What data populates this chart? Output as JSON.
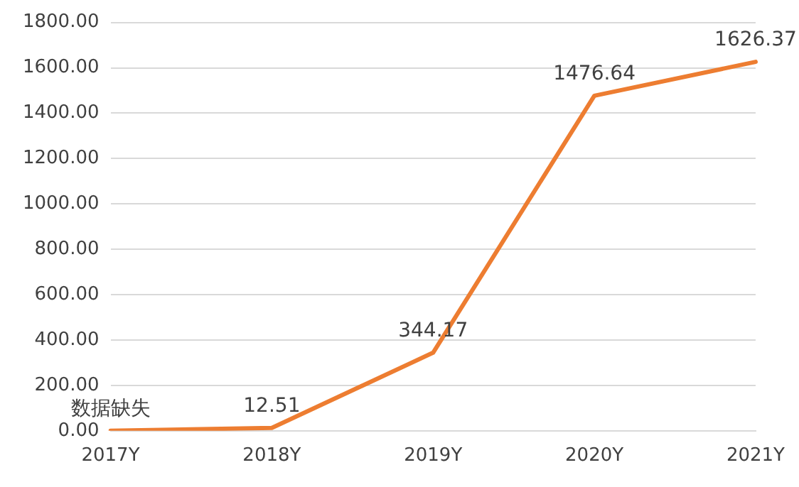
{
  "chart_data": {
    "type": "line",
    "categories": [
      "2017Y",
      "2018Y",
      "2019Y",
      "2020Y",
      "2021Y"
    ],
    "series": [
      {
        "color": "#ed7d31",
        "values": [
          0,
          12.51,
          344.17,
          1476.64,
          1626.37
        ],
        "value_labels": [
          "数据缺失",
          "12.51",
          "344.17",
          "1476.64",
          "1626.37"
        ]
      }
    ],
    "ylim": [
      0,
      1800
    ],
    "yticks": [
      {
        "value": 0,
        "label": "0.00"
      },
      {
        "value": 200,
        "label": "200.00"
      },
      {
        "value": 400,
        "label": "400.00"
      },
      {
        "value": 600,
        "label": "600.00"
      },
      {
        "value": 800,
        "label": "800.00"
      },
      {
        "value": 1000,
        "label": "1000.00"
      },
      {
        "value": 1200,
        "label": "1200.00"
      },
      {
        "value": 1400,
        "label": "1400.00"
      },
      {
        "value": 1600,
        "label": "1600.00"
      },
      {
        "value": 1800,
        "label": "1800.00"
      }
    ],
    "grid": "y",
    "legend": false,
    "marker": "none",
    "line_style": "solid"
  }
}
